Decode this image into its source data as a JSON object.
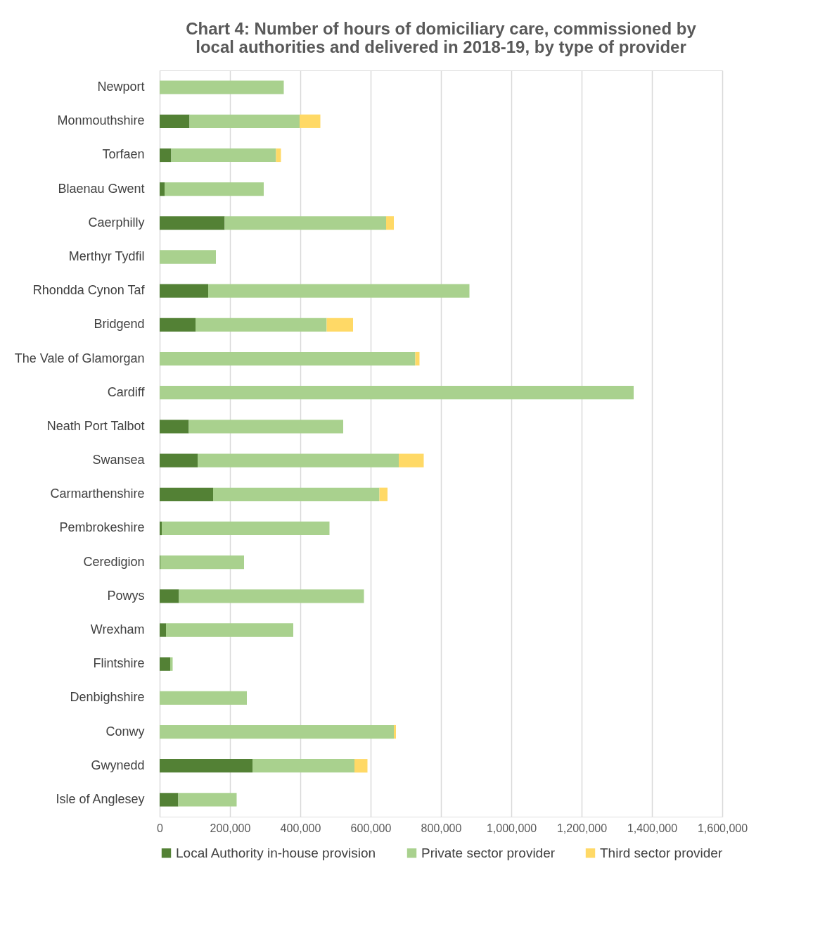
{
  "chart_data": {
    "type": "bar",
    "orientation": "horizontal",
    "stacked": true,
    "title": "Chart 4: Number of hours of domiciliary care, commissioned by local authorities and delivered in 2018-19, by type of provider",
    "categories": [
      "Newport",
      "Monmouthshire",
      "Torfaen",
      "Blaenau Gwent",
      "Caerphilly",
      "Merthyr Tydfil",
      "Rhondda Cynon Taf",
      "Bridgend",
      "The Vale of Glamorgan",
      "Cardiff",
      "Neath Port Talbot",
      "Swansea",
      "Carmarthenshire",
      "Pembrokeshire",
      "Ceredigion",
      "Powys",
      "Wrexham",
      "Flintshire",
      "Denbighshire",
      "Conwy",
      "Gwynedd",
      "Isle of Anglesey"
    ],
    "series": [
      {
        "name": "Local Authority in-house provision",
        "color": "#538135",
        "values": [
          null,
          85000,
          33000,
          14000,
          185000,
          null,
          138000,
          102000,
          null,
          null,
          83000,
          108000,
          152000,
          6000,
          2000,
          55000,
          18000,
          30000,
          null,
          null,
          264000,
          53000
        ]
      },
      {
        "name": "Private sector provider",
        "color": "#a9d18e",
        "values": [
          353000,
          313000,
          298000,
          282000,
          459000,
          160000,
          743000,
          373000,
          727000,
          1348000,
          439000,
          572000,
          473000,
          477000,
          238000,
          526000,
          362000,
          7000,
          248000,
          666000,
          290000,
          166000
        ]
      },
      {
        "name": "Third sector provider",
        "color": "#ffd966",
        "values": [
          null,
          59000,
          14000,
          null,
          22000,
          null,
          null,
          75000,
          12000,
          null,
          null,
          71000,
          23000,
          null,
          null,
          null,
          null,
          null,
          null,
          6000,
          37000,
          null
        ]
      }
    ],
    "xlim": [
      0,
      1600000
    ],
    "xticks": [
      0,
      {
        "value": 200000,
        "label": "200,000"
      },
      {
        "value": 400000,
        "label": "400,000"
      },
      {
        "value": 600000,
        "label": "600,000"
      },
      {
        "value": 800000,
        "label": "800,000"
      },
      {
        "value": 1000000,
        "label": "1,000,000"
      },
      {
        "value": 1200000,
        "label": "1,200,000"
      },
      {
        "value": 1400000,
        "label": "1,400,000"
      },
      {
        "value": 1600000,
        "label": "1,600,000"
      }
    ],
    "grid": "x",
    "legend": "bottom"
  }
}
